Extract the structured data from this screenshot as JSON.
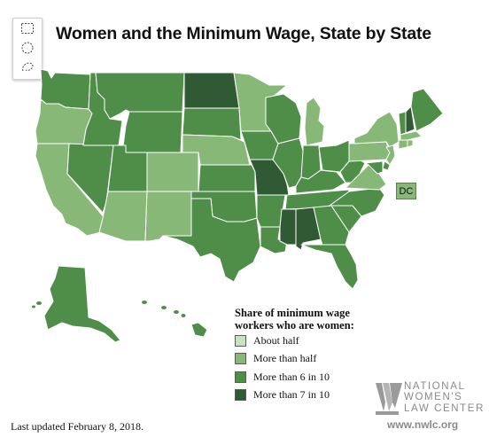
{
  "title": "Women and the Minimum Wage, State by State",
  "toolbar": {
    "tools": [
      {
        "name": "rectangle-select-icon"
      },
      {
        "name": "circle-select-icon"
      },
      {
        "name": "lasso-select-icon"
      }
    ]
  },
  "colors": {
    "about_half": "#c8e3c2",
    "more_than_half": "#87b877",
    "more_than_6_in_10": "#4e8e48",
    "more_than_7_in_10": "#2f5a34",
    "border": "#ffffff"
  },
  "legend": {
    "title": "Share of minimum wage workers who are women:",
    "items": [
      {
        "label": "About half",
        "color": "#c8e3c2"
      },
      {
        "label": "More than half",
        "color": "#87b877"
      },
      {
        "label": "More than 6 in 10",
        "color": "#4e8e48"
      },
      {
        "label": "More than 7 in 10",
        "color": "#2f5a34"
      }
    ]
  },
  "dc_label": "DC",
  "footer": "Last updated February 8, 2018.",
  "logo": {
    "lines": [
      "NATIONAL",
      "WOMEN'S",
      "LAW CENTER"
    ],
    "url": "www.nwlc.org"
  },
  "state_categories": {
    "WA": "more_than_6_in_10",
    "OR": "more_than_half",
    "CA": "more_than_half",
    "NV": "more_than_6_in_10",
    "ID": "more_than_6_in_10",
    "MT": "more_than_6_in_10",
    "WY": "more_than_6_in_10",
    "UT": "more_than_6_in_10",
    "AZ": "more_than_half",
    "CO": "more_than_half",
    "NM": "more_than_half",
    "ND": "more_than_7_in_10",
    "SD": "more_than_6_in_10",
    "NE": "more_than_half",
    "KS": "more_than_6_in_10",
    "OK": "more_than_6_in_10",
    "TX": "more_than_6_in_10",
    "MN": "more_than_half",
    "IA": "more_than_6_in_10",
    "MO": "more_than_7_in_10",
    "AR": "more_than_6_in_10",
    "LA": "more_than_6_in_10",
    "WI": "more_than_6_in_10",
    "IL": "more_than_6_in_10",
    "MI": "more_than_half",
    "IN": "more_than_6_in_10",
    "OH": "more_than_6_in_10",
    "KY": "more_than_6_in_10",
    "TN": "more_than_6_in_10",
    "MS": "more_than_7_in_10",
    "AL": "more_than_7_in_10",
    "GA": "more_than_6_in_10",
    "FL": "more_than_6_in_10",
    "SC": "more_than_6_in_10",
    "NC": "more_than_6_in_10",
    "VA": "more_than_half",
    "WV": "more_than_6_in_10",
    "PA": "more_than_half",
    "NY": "more_than_half",
    "VT": "more_than_6_in_10",
    "NH": "more_than_7_in_10",
    "ME": "more_than_6_in_10",
    "MA": "more_than_half",
    "CT": "more_than_half",
    "RI": "more_than_half",
    "NJ": "more_than_half",
    "DE": "more_than_6_in_10",
    "MD": "more_than_6_in_10",
    "AK": "more_than_6_in_10",
    "HI": "more_than_6_in_10",
    "DC": "more_than_half"
  }
}
